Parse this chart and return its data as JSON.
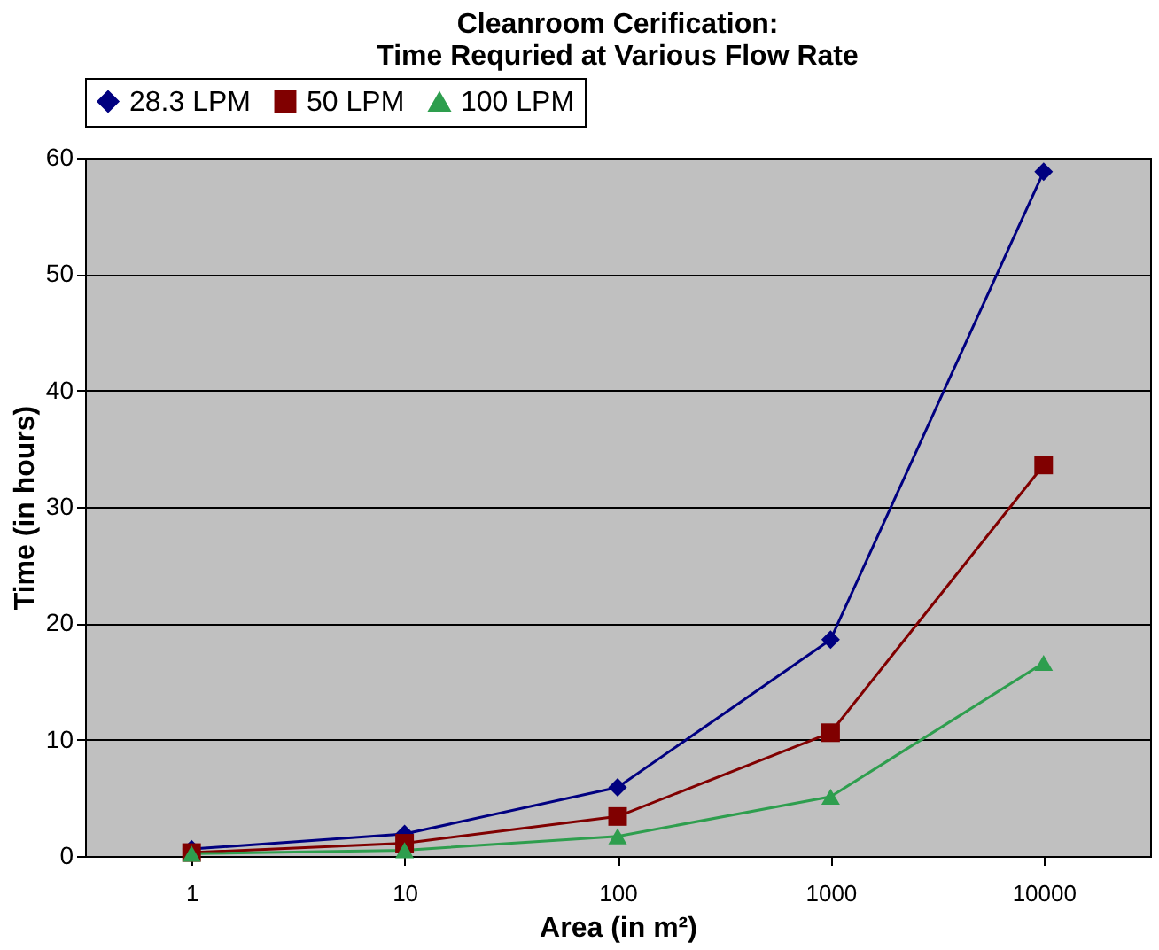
{
  "chart_data": {
    "type": "line",
    "title": [
      "Cleanroom Cerification:",
      "Time Requried at Various Flow Rate"
    ],
    "xlabel": "Area (in m²)",
    "ylabel": "Time (in hours)",
    "categories": [
      "1",
      "10",
      "100",
      "1000",
      "10000"
    ],
    "series": [
      {
        "name": "28.3 LPM",
        "color": "#000080",
        "marker": "diamond",
        "values": [
          0.6,
          1.9,
          5.9,
          18.6,
          58.8
        ]
      },
      {
        "name": "50 LPM",
        "color": "#800000",
        "marker": "square",
        "values": [
          0.3,
          1.1,
          3.4,
          10.6,
          33.6
        ]
      },
      {
        "name": "100 LPM",
        "color": "#2e9e4e",
        "marker": "triangle",
        "values": [
          0.2,
          0.5,
          1.7,
          5.1,
          16.6
        ]
      }
    ],
    "ylim": [
      0,
      60
    ],
    "yticks": [
      0,
      10,
      20,
      30,
      40,
      50,
      60
    ],
    "grid": "y",
    "legend": "top",
    "line_style": "solid"
  }
}
